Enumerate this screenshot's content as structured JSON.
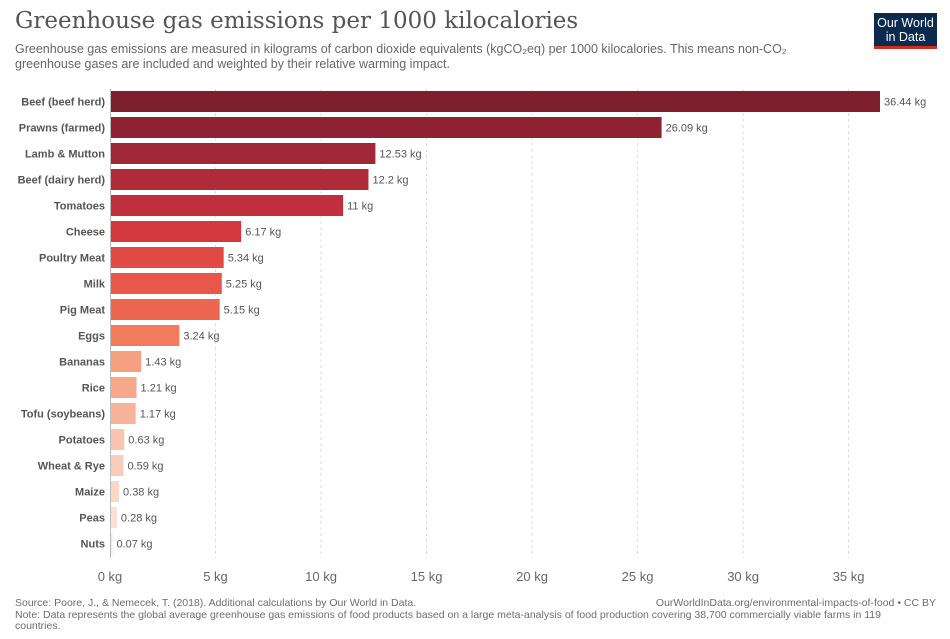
{
  "header": {
    "title": "Greenhouse gas emissions per 1000 kilocalories",
    "subtitle": "Greenhouse gas emissions are measured in kilograms of carbon dioxide equivalents (kgCO₂eq) per 1000 kilocalories. This means non-CO₂ greenhouse gases are included and weighted by their relative warming impact."
  },
  "logo": {
    "line1": "Our World",
    "line2": "in Data"
  },
  "footer": {
    "source": "Source: Poore, J., & Nemecek, T. (2018). Additional calculations by Our World in Data.",
    "note": "Note: Data represents the global average greenhouse gas emissions of food products based on a large meta-analysis of food production covering 38,700 commercially viable farms in 119 countries.",
    "url": "OurWorldInData.org/environmental-impacts-of-food • CC BY"
  },
  "chart_data": {
    "type": "bar",
    "orientation": "horizontal",
    "categories": [
      "Beef (beef herd)",
      "Prawns (farmed)",
      "Lamb & Mutton",
      "Beef (dairy herd)",
      "Tomatoes",
      "Cheese",
      "Poultry Meat",
      "Milk",
      "Pig Meat",
      "Eggs",
      "Bananas",
      "Rice",
      "Tofu (soybeans)",
      "Potatoes",
      "Wheat & Rye",
      "Maize",
      "Peas",
      "Nuts"
    ],
    "values": [
      36.44,
      26.09,
      12.53,
      12.2,
      11,
      6.17,
      5.34,
      5.25,
      5.15,
      3.24,
      1.43,
      1.21,
      1.17,
      0.63,
      0.59,
      0.38,
      0.28,
      0.07
    ],
    "value_labels": [
      "36.44 kg",
      "26.09 kg",
      "12.53 kg",
      "12.2 kg",
      "11 kg",
      "6.17 kg",
      "5.34 kg",
      "5.25 kg",
      "5.15 kg",
      "3.24 kg",
      "1.43 kg",
      "1.21 kg",
      "1.17 kg",
      "0.63 kg",
      "0.59 kg",
      "0.38 kg",
      "0.28 kg",
      "0.07 kg"
    ],
    "colors": [
      "#7e1f2e",
      "#8e2232",
      "#9f2836",
      "#af2b39",
      "#bf2f3c",
      "#d4383f",
      "#e24a46",
      "#e75849",
      "#ec6650",
      "#f07b5d",
      "#f59e80",
      "#f7a88c",
      "#f8b39b",
      "#fac4b0",
      "#fbcbbb",
      "#fcd6c8",
      "#fddfd4",
      "#fee8e0"
    ],
    "x_ticks": [
      0,
      5,
      10,
      15,
      20,
      25,
      30,
      35
    ],
    "x_tick_labels": [
      "0 kg",
      "5 kg",
      "10 kg",
      "15 kg",
      "20 kg",
      "25 kg",
      "30 kg",
      "35 kg"
    ],
    "xlim": [
      0,
      36.44
    ],
    "grid": true
  }
}
